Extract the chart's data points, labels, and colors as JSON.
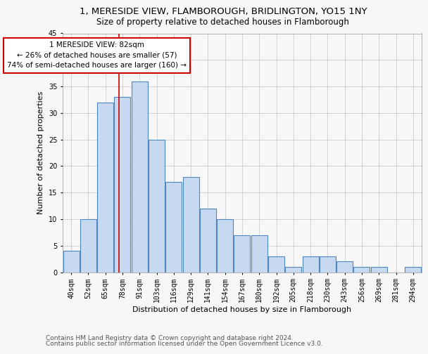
{
  "title1": "1, MERESIDE VIEW, FLAMBOROUGH, BRIDLINGTON, YO15 1NY",
  "title2": "Size of property relative to detached houses in Flamborough",
  "xlabel": "Distribution of detached houses by size in Flamborough",
  "ylabel": "Number of detached properties",
  "categories": [
    "40sqm",
    "52sqm",
    "65sqm",
    "78sqm",
    "91sqm",
    "103sqm",
    "116sqm",
    "129sqm",
    "141sqm",
    "154sqm",
    "167sqm",
    "180sqm",
    "192sqm",
    "205sqm",
    "218sqm",
    "230sqm",
    "243sqm",
    "256sqm",
    "269sqm",
    "281sqm",
    "294sqm"
  ],
  "values": [
    4,
    10,
    32,
    33,
    36,
    25,
    17,
    18,
    12,
    10,
    7,
    7,
    3,
    1,
    3,
    3,
    2,
    1,
    1,
    0,
    1
  ],
  "bar_color": "#c6d9f1",
  "bar_edge_color": "#4f86c0",
  "vline_color": "#cc0000",
  "annotation_text": "1 MERESIDE VIEW: 82sqm\n← 26% of detached houses are smaller (57)\n74% of semi-detached houses are larger (160) →",
  "annotation_box_color": "white",
  "annotation_box_edge_color": "#cc0000",
  "ylim": [
    0,
    45
  ],
  "yticks": [
    0,
    5,
    10,
    15,
    20,
    25,
    30,
    35,
    40,
    45
  ],
  "footer1": "Contains HM Land Registry data © Crown copyright and database right 2024.",
  "footer2": "Contains public sector information licensed under the Open Government Licence v3.0.",
  "bg_color": "#f7f7f7",
  "grid_color": "#cccccc",
  "title1_fontsize": 9.5,
  "title2_fontsize": 8.5,
  "xlabel_fontsize": 8,
  "ylabel_fontsize": 8,
  "tick_fontsize": 7,
  "annotation_fontsize": 7.5,
  "footer_fontsize": 6.5
}
